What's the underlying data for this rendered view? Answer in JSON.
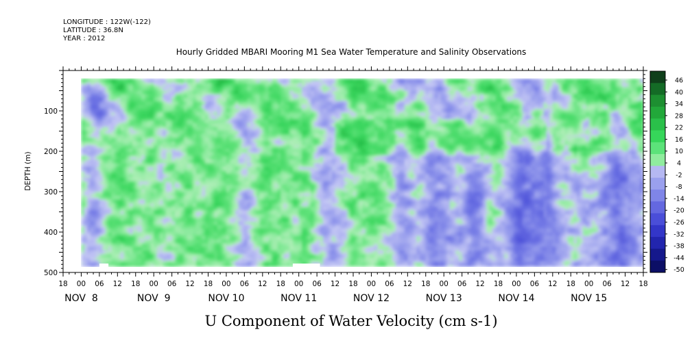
{
  "header": {
    "longitude": "LONGITUDE : 122W(-122)",
    "latitude": "LATITUDE : 36.8N",
    "year": "YEAR : 2012"
  },
  "chart_data": {
    "type": "heatmap",
    "title": "Hourly Gridded MBARI Mooring M1 Sea Water Temperature and Salinity Observations",
    "xlabel": "U Component of Water Velocity (cm s-1)",
    "ylabel": "DEPTH (m)",
    "y_inverted": true,
    "ylim": [
      500,
      0
    ],
    "y_ticks": [
      100,
      200,
      300,
      400,
      500
    ],
    "x_time_range": [
      "2012-11-07T18:00",
      "2012-11-15T18:00"
    ],
    "x_hour_ticks": [
      "18",
      "00",
      "06",
      "12",
      "18",
      "00",
      "06",
      "12",
      "18",
      "00",
      "06",
      "12",
      "18",
      "00",
      "06",
      "12",
      "18",
      "00",
      "06",
      "12",
      "18",
      "00",
      "06",
      "12",
      "18",
      "00",
      "06",
      "12",
      "18",
      "00",
      "06",
      "12",
      "18"
    ],
    "x_date_labels": [
      {
        "label": "NOV  8",
        "hours": 6
      },
      {
        "label": "NOV  9",
        "hours": 30
      },
      {
        "label": "NOV 10",
        "hours": 54
      },
      {
        "label": "NOV 11",
        "hours": 78
      },
      {
        "label": "NOV 12",
        "hours": 102
      },
      {
        "label": "NOV 13",
        "hours": 126
      },
      {
        "label": "NOV 14",
        "hours": 150
      },
      {
        "label": "NOV 15",
        "hours": 174
      }
    ],
    "data_depth_range": [
      20,
      485
    ],
    "data_time_range_hours": [
      6,
      192
    ],
    "colorbar_labels": [
      "46",
      "40",
      "34",
      "28",
      "22",
      "16",
      "10",
      "4",
      "-2",
      "-8",
      "-14",
      "-20",
      "-26",
      "-32",
      "-38",
      "-44",
      "-50"
    ],
    "colorbar_colors": [
      "#0f3f1a",
      "#146b26",
      "#1d8f31",
      "#22a83a",
      "#2ac04a",
      "#36d65a",
      "#5ce37a",
      "#90ec9e",
      "#b5b8f2",
      "#9aa0ee",
      "#7f85e8",
      "#6468e0",
      "#4a4ed8",
      "#3336c8",
      "#2225ae",
      "#15188c",
      "#0c0f66"
    ],
    "approx_value_range": [
      -20,
      28
    ]
  }
}
